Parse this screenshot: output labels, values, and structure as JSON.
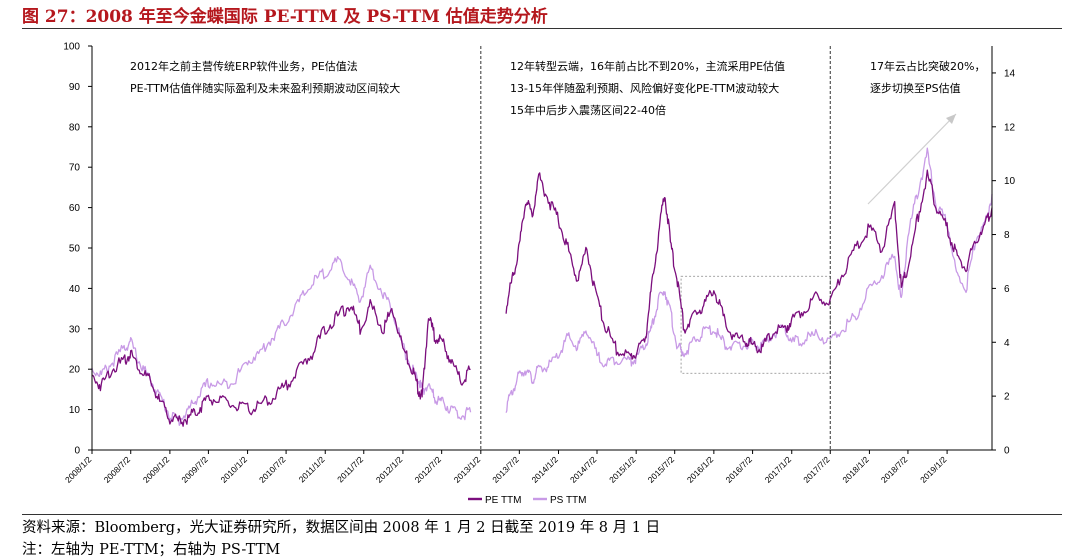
{
  "header": {
    "title": "图 27：2008 年至今金蝶国际 PE-TTM 及 PS-TTM 估值走势分析"
  },
  "footer": {
    "source": "资料来源：Bloomberg，光大证券研究所，数据区间由 2008 年 1 月 2 日截至 2019 年 8 月 1 日",
    "note": "注：左轴为 PE-TTM；右轴为 PS-TTM"
  },
  "chart_data": {
    "type": "line",
    "title": "",
    "xlabel": "",
    "ylabel": "",
    "ylim": [
      0,
      100
    ],
    "y2lim": [
      0,
      15
    ],
    "yticks": [
      0,
      10,
      20,
      30,
      40,
      50,
      60,
      70,
      80,
      90,
      100
    ],
    "y2ticks": [
      0,
      2,
      4,
      6,
      8,
      10,
      12,
      14
    ],
    "x_ticks": [
      "2008/1/2",
      "2008/7/2",
      "2009/1/2",
      "2009/7/2",
      "2010/1/2",
      "2010/7/2",
      "2011/1/2",
      "2011/7/2",
      "2012/1/2",
      "2012/7/2",
      "2013/1/2",
      "2013/7/2",
      "2014/1/2",
      "2014/7/2",
      "2015/1/2",
      "2015/7/2",
      "2016/1/2",
      "2016/7/2",
      "2017/1/2",
      "2017/7/2",
      "2018/1/2",
      "2018/7/2",
      "2019/1/2"
    ],
    "legend": {
      "placement": "bottom-center",
      "entries": [
        "PE TTM",
        "PS TTM"
      ]
    },
    "grid": false,
    "annotations": [
      {
        "lines": [
          "2012年之前主营传统ERP软件业务，PE估值法",
          "PE-TTM估值伴随实际盈利及未来盈利预期波动区间较大"
        ]
      },
      {
        "lines": [
          "12年转型云端，16年前占比不到20%，主流采用PE估值",
          "13-15年伴随盈利预期、风险偏好变化PE-TTM波动较大",
          "15年中后步入震荡区间22-40倍"
        ]
      },
      {
        "lines": [
          "17年云占比突破20%，",
          "逐步切换至PS估值"
        ]
      }
    ],
    "dividers": [
      "2013/1/2",
      "2017/7/2"
    ],
    "colors": {
      "pe": "#7b0e7d",
      "ps": "#c89ae6"
    },
    "series": [
      {
        "name": "PE TTM",
        "axis": "left",
        "points": [
          [
            "2008/1/2",
            18
          ],
          [
            "2008/2/15",
            16
          ],
          [
            "2008/4/1",
            20
          ],
          [
            "2008/6/1",
            22
          ],
          [
            "2008/7/2",
            24
          ],
          [
            "2008/8/15",
            20
          ],
          [
            "2008/10/1",
            17
          ],
          [
            "2008/11/15",
            12
          ],
          [
            "2009/1/2",
            8
          ],
          [
            "2009/2/15",
            7
          ],
          [
            "2009/4/1",
            8
          ],
          [
            "2009/5/15",
            10
          ],
          [
            "2009/7/2",
            13
          ],
          [
            "2009/9/1",
            12
          ],
          [
            "2009/11/1",
            11
          ],
          [
            "2010/1/2",
            10
          ],
          [
            "2010/3/1",
            11
          ],
          [
            "2010/5/1",
            13
          ],
          [
            "2010/7/2",
            16
          ],
          [
            "2010/9/1",
            20
          ],
          [
            "2010/11/1",
            24
          ],
          [
            "2011/1/2",
            30
          ],
          [
            "2011/3/1",
            33
          ],
          [
            "2011/5/1",
            36
          ],
          [
            "2011/6/15",
            30
          ],
          [
            "2011/8/1",
            36
          ],
          [
            "2011/10/1",
            30
          ],
          [
            "2011/11/15",
            35
          ],
          [
            "2012/1/2",
            25
          ],
          [
            "2012/2/15",
            20
          ],
          [
            "2012/3/15",
            15
          ],
          [
            "2012/4/1",
            13
          ],
          [
            "2012/5/1",
            33
          ],
          [
            "2012/6/1",
            28
          ],
          [
            "2012/7/2",
            27
          ],
          [
            "2012/8/15",
            22
          ],
          [
            "2012/10/1",
            17
          ],
          [
            "2012/11/15",
            20
          ]
        ]
      },
      {
        "name": "PE TTM",
        "axis": "left",
        "points": [
          [
            "2013/5/1",
            35
          ],
          [
            "2013/6/1",
            43
          ],
          [
            "2013/7/2",
            50
          ],
          [
            "2013/8/1",
            62
          ],
          [
            "2013/9/1",
            58
          ],
          [
            "2013/10/1",
            68
          ],
          [
            "2013/11/15",
            62
          ],
          [
            "2014/1/2",
            57
          ],
          [
            "2014/2/15",
            50
          ],
          [
            "2014/4/1",
            42
          ],
          [
            "2014/5/15",
            50
          ],
          [
            "2014/7/2",
            37
          ],
          [
            "2014/8/15",
            30
          ],
          [
            "2014/10/1",
            25
          ],
          [
            "2014/12/1",
            23
          ],
          [
            "2015/1/2",
            24
          ],
          [
            "2015/2/15",
            28
          ],
          [
            "2015/3/15",
            40
          ],
          [
            "2015/4/15",
            52
          ],
          [
            "2015/5/15",
            64
          ],
          [
            "2015/6/15",
            50
          ],
          [
            "2015/7/15",
            42
          ],
          [
            "2015/8/15",
            30
          ],
          [
            "2015/10/1",
            33
          ],
          [
            "2015/11/15",
            36
          ],
          [
            "2016/1/2",
            40
          ],
          [
            "2016/2/15",
            33
          ],
          [
            "2016/4/1",
            28
          ],
          [
            "2016/6/1",
            27
          ],
          [
            "2016/7/2",
            26
          ],
          [
            "2016/8/15",
            25
          ],
          [
            "2016/10/1",
            29
          ],
          [
            "2016/12/1",
            30
          ],
          [
            "2017/1/2",
            32
          ],
          [
            "2017/3/1",
            35
          ],
          [
            "2017/5/1",
            38
          ],
          [
            "2017/7/2",
            37
          ],
          [
            "2017/9/1",
            44
          ],
          [
            "2017/11/1",
            50
          ],
          [
            "2018/1/2",
            55
          ],
          [
            "2018/3/1",
            50
          ],
          [
            "2018/5/1",
            60
          ],
          [
            "2018/6/1",
            40
          ],
          [
            "2018/7/2",
            45
          ],
          [
            "2018/8/15",
            57
          ],
          [
            "2018/10/1",
            68
          ],
          [
            "2018/11/15",
            60
          ],
          [
            "2019/1/2",
            55
          ],
          [
            "2019/2/15",
            48
          ],
          [
            "2019/4/1",
            45
          ],
          [
            "2019/5/15",
            52
          ],
          [
            "2019/7/2",
            56
          ],
          [
            "2019/8/1",
            60
          ]
        ]
      },
      {
        "name": "PS TTM",
        "axis": "right",
        "points": [
          [
            "2008/1/2",
            3.0
          ],
          [
            "2008/2/15",
            2.8
          ],
          [
            "2008/4/1",
            3.2
          ],
          [
            "2008/6/1",
            3.8
          ],
          [
            "2008/7/2",
            4.0
          ],
          [
            "2008/8/15",
            3.2
          ],
          [
            "2008/10/1",
            2.6
          ],
          [
            "2008/11/15",
            2.0
          ],
          [
            "2009/1/2",
            1.3
          ],
          [
            "2009/2/15",
            1.1
          ],
          [
            "2009/4/1",
            1.5
          ],
          [
            "2009/5/15",
            2.0
          ],
          [
            "2009/7/2",
            2.5
          ],
          [
            "2009/9/1",
            2.4
          ],
          [
            "2009/11/1",
            2.6
          ],
          [
            "2010/1/2",
            3.3
          ],
          [
            "2010/3/1",
            3.6
          ],
          [
            "2010/5/1",
            4.2
          ],
          [
            "2010/7/2",
            4.8
          ],
          [
            "2010/9/1",
            5.5
          ],
          [
            "2010/11/1",
            6.2
          ],
          [
            "2011/1/2",
            6.6
          ],
          [
            "2011/3/1",
            7.0
          ],
          [
            "2011/5/1",
            6.3
          ],
          [
            "2011/6/15",
            5.5
          ],
          [
            "2011/8/1",
            6.8
          ],
          [
            "2011/10/1",
            5.8
          ],
          [
            "2011/11/15",
            5.2
          ],
          [
            "2012/1/2",
            3.8
          ],
          [
            "2012/2/15",
            3.0
          ],
          [
            "2012/3/15",
            2.6
          ],
          [
            "2012/4/1",
            2.2
          ],
          [
            "2012/5/1",
            2.4
          ],
          [
            "2012/6/1",
            1.9
          ],
          [
            "2012/7/2",
            1.8
          ],
          [
            "2012/8/15",
            1.5
          ],
          [
            "2012/10/1",
            1.3
          ],
          [
            "2012/11/15",
            1.4
          ]
        ]
      },
      {
        "name": "PS TTM",
        "axis": "right",
        "points": [
          [
            "2013/5/1",
            1.6
          ],
          [
            "2013/6/1",
            2.2
          ],
          [
            "2013/7/2",
            2.8
          ],
          [
            "2013/8/1",
            3.0
          ],
          [
            "2013/9/1",
            2.6
          ],
          [
            "2013/10/1",
            3.0
          ],
          [
            "2013/11/15",
            3.1
          ],
          [
            "2014/1/2",
            3.5
          ],
          [
            "2014/2/15",
            4.2
          ],
          [
            "2014/4/1",
            3.8
          ],
          [
            "2014/5/15",
            4.5
          ],
          [
            "2014/7/2",
            3.5
          ],
          [
            "2014/8/15",
            3.2
          ],
          [
            "2014/10/1",
            3.4
          ],
          [
            "2014/12/1",
            3.3
          ],
          [
            "2015/1/2",
            3.4
          ],
          [
            "2015/2/15",
            3.9
          ],
          [
            "2015/3/15",
            4.5
          ],
          [
            "2015/4/15",
            5.5
          ],
          [
            "2015/5/15",
            6.0
          ],
          [
            "2015/6/15",
            5.0
          ],
          [
            "2015/7/15",
            3.8
          ],
          [
            "2015/8/15",
            3.6
          ],
          [
            "2015/10/1",
            4.0
          ],
          [
            "2015/11/15",
            4.4
          ],
          [
            "2016/1/2",
            4.5
          ],
          [
            "2016/2/15",
            4.0
          ],
          [
            "2016/4/1",
            3.8
          ],
          [
            "2016/6/1",
            3.9
          ],
          [
            "2016/7/2",
            4.0
          ],
          [
            "2016/8/15",
            3.8
          ],
          [
            "2016/10/1",
            4.3
          ],
          [
            "2016/12/1",
            4.5
          ],
          [
            "2017/1/2",
            4.0
          ],
          [
            "2017/3/1",
            4.1
          ],
          [
            "2017/5/1",
            4.3
          ],
          [
            "2017/7/2",
            4.0
          ],
          [
            "2017/9/1",
            4.5
          ],
          [
            "2017/11/1",
            5.0
          ],
          [
            "2018/1/2",
            6.0
          ],
          [
            "2018/3/1",
            6.5
          ],
          [
            "2018/5/1",
            7.2
          ],
          [
            "2018/6/1",
            5.5
          ],
          [
            "2018/7/2",
            8.0
          ],
          [
            "2018/8/15",
            9.5
          ],
          [
            "2018/10/1",
            11.0
          ],
          [
            "2018/11/15",
            9.0
          ],
          [
            "2019/1/2",
            8.5
          ],
          [
            "2019/2/15",
            6.5
          ],
          [
            "2019/4/1",
            6.0
          ],
          [
            "2019/5/15",
            7.8
          ],
          [
            "2019/7/2",
            8.4
          ],
          [
            "2019/8/1",
            9.5
          ]
        ]
      }
    ]
  }
}
